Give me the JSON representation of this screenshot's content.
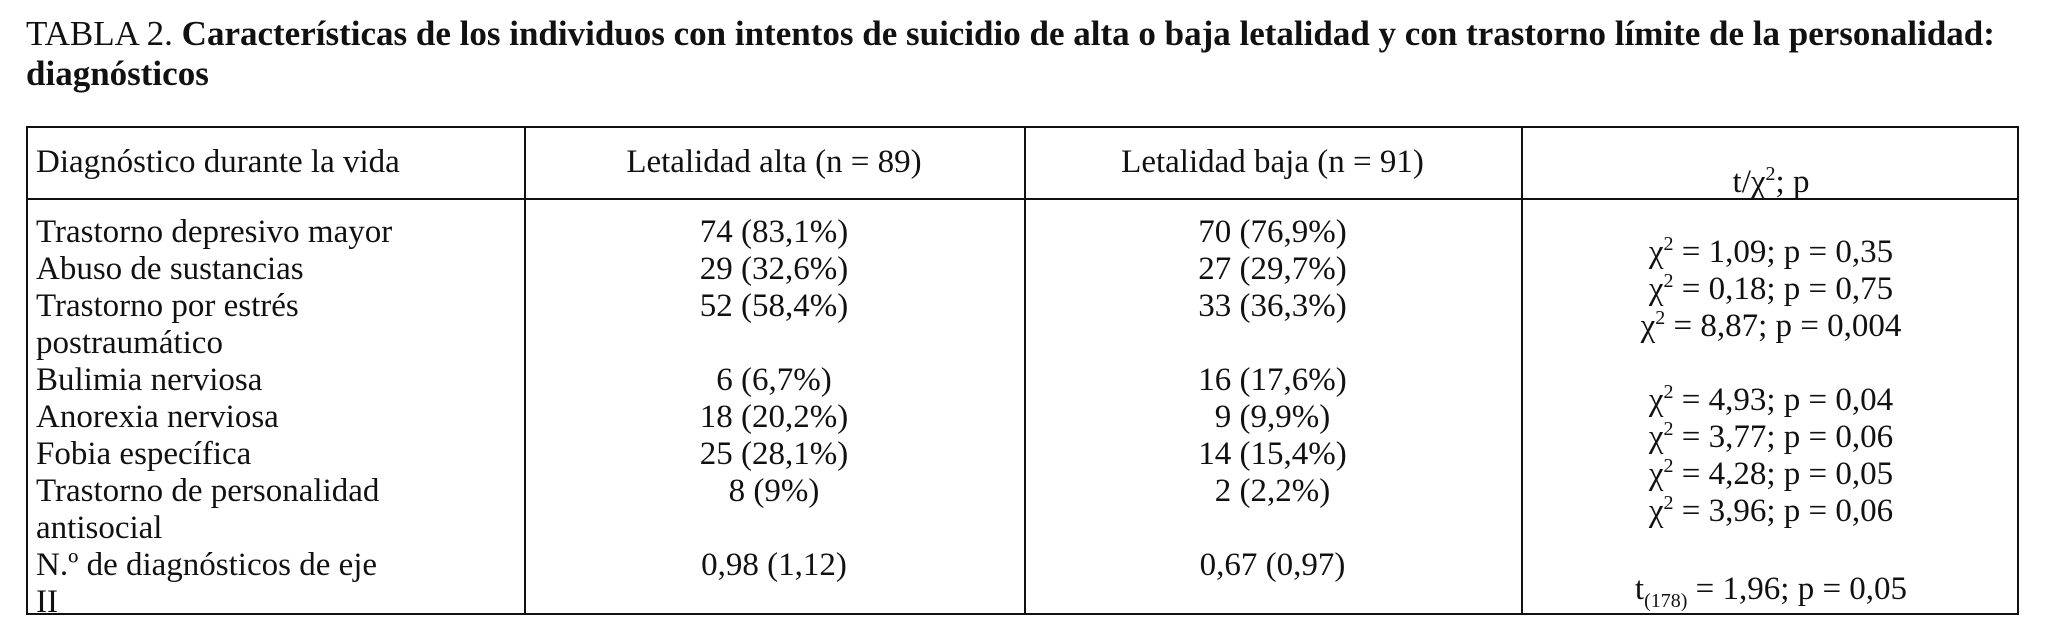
{
  "header": {
    "label": "TABLA 2.",
    "title": "Características de los individuos con intentos de suicidio de alta o baja letalidad y con trastorno límite de la personalidad: diagnósticos"
  },
  "table": {
    "columns": [
      "Diagnóstico durante la vida",
      "Letalidad alta (n = 89)",
      "Letalidad baja (n = 91)",
      {
        "base": "t/χ",
        "sup": "2",
        "rest": "; p"
      }
    ],
    "rows": [
      {
        "diagnosis": "Trastorno depresivo mayor",
        "high": "74 (83,1%)",
        "low": "70 (76,9%)",
        "stat": {
          "base": "χ",
          "sup": "2",
          "rest": " = 1,09; p = 0,35"
        }
      },
      {
        "diagnosis": "Abuso de sustancias",
        "high": "29 (32,6%)",
        "low": "27 (29,7%)",
        "stat": {
          "base": "χ",
          "sup": "2",
          "rest": " = 0,18; p = 0,75"
        }
      },
      {
        "diagnosis": "Trastorno por estrés postraumático",
        "high": "52 (58,4%)",
        "low": "33 (36,3%)",
        "stat": {
          "base": "χ",
          "sup": "2",
          "rest": " = 8,87; p = 0,004"
        }
      },
      {
        "diagnosis": "Bulimia nerviosa",
        "high": "6 (6,7%)",
        "low": "16 (17,6%)",
        "stat": {
          "base": "χ",
          "sup": "2",
          "rest": " = 4,93; p = 0,04"
        }
      },
      {
        "diagnosis": "Anorexia nerviosa",
        "high": "18 (20,2%)",
        "low": "9 (9,9%)",
        "stat": {
          "base": "χ",
          "sup": "2",
          "rest": " = 3,77; p = 0,06"
        }
      },
      {
        "diagnosis": "Fobia específica",
        "high": "25 (28,1%)",
        "low": "14 (15,4%)",
        "stat": {
          "base": "χ",
          "sup": "2",
          "rest": " = 4,28; p = 0,05"
        }
      },
      {
        "diagnosis": "Trastorno de personalidad antisocial",
        "high": "8 (9%)",
        "low": "2 (2,2%)",
        "stat": {
          "base": "χ",
          "sup": "2",
          "rest": " = 3,96; p = 0,06"
        }
      },
      {
        "diagnosis": "N.º de diagnósticos de eje II",
        "high": "0,98 (1,12)",
        "low": "0,67 (0,97)",
        "stat": {
          "base": "t",
          "sub": "(178)",
          "rest": " = 1,96; p = 0,05"
        }
      }
    ]
  }
}
